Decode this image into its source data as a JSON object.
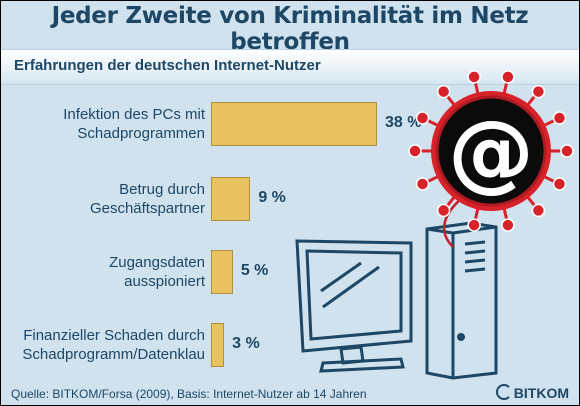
{
  "title": "Jeder Zweite von Kriminalität im Netz betroffen",
  "subtitle": "Erfahrungen der deutschen Internet-Nutzer",
  "source": "Quelle: BITKOM/Forsa (2009), Basis: Internet-Nutzer ab 14 Jahren",
  "brand": "BITKOM",
  "illustration": {
    "icons": [
      "at-sign-virus-icon",
      "computer-monitor-icon",
      "pc-tower-icon"
    ],
    "at_symbol": "@"
  },
  "colors": {
    "background": "#cfe2ee",
    "bar_fill": "#e8c25e",
    "text": "#1e4766",
    "virus_red": "#d8222a"
  },
  "chart_data": {
    "type": "bar",
    "orientation": "horizontal",
    "title": "Jeder Zweite von Kriminalität im Netz betroffen",
    "subtitle": "Erfahrungen der deutschen Internet-Nutzer",
    "unit": "%",
    "categories": [
      [
        "Infektion des PCs mit",
        "Schadprogrammen"
      ],
      [
        "Betrug durch",
        "Geschäftspartner"
      ],
      [
        "Zugangsdaten",
        "ausspioniert"
      ],
      [
        "Finanzieller Schaden durch",
        "Schadprogramm/Datenklau"
      ]
    ],
    "values": [
      38,
      9,
      5,
      3
    ],
    "value_labels": [
      "38 %",
      "9 %",
      "5 %",
      "3 %"
    ],
    "legend": "none",
    "grid": false
  }
}
